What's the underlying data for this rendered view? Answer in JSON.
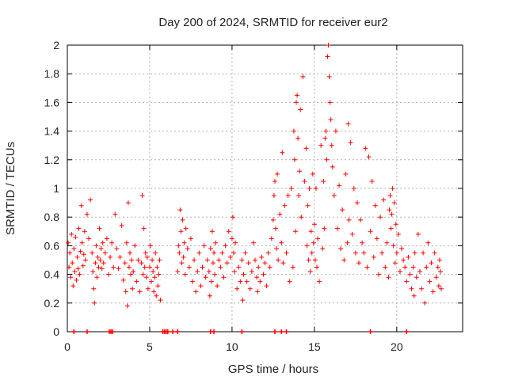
{
  "chart_data": {
    "type": "scatter",
    "title": "Day 200 of 2024, SRMTID for receiver eur2",
    "xlabel": "GPS time / hours",
    "ylabel": "SRMTID / TECUs",
    "xlim": [
      0,
      24
    ],
    "ylim": [
      0,
      2
    ],
    "xticks": [
      0,
      5,
      10,
      15,
      20
    ],
    "xtick_labels": [
      "0",
      "5",
      "10",
      "15",
      "20"
    ],
    "yticks": [
      0,
      0.2,
      0.4,
      0.6,
      0.8,
      1,
      1.2,
      1.4,
      1.6,
      1.8,
      2
    ],
    "ytick_labels": [
      "0",
      "0.2",
      "0.4",
      "0.6",
      "0.8",
      "1",
      "1.2",
      "1.4",
      "1.6",
      "1.8",
      "2"
    ],
    "grid": true,
    "marker": "+",
    "color": "#ff0000",
    "zero_markers_x": [
      0.4,
      1.2,
      2.55,
      2.65,
      2.75,
      5.8,
      5.9,
      6.0,
      6.1,
      6.4,
      6.7,
      8.7,
      8.9,
      10.6,
      12.6,
      13.0,
      13.3,
      18.4,
      20.6
    ],
    "series": [
      {
        "name": "SRMTID",
        "points": [
          [
            0.05,
            0.62
          ],
          [
            0.1,
            0.45
          ],
          [
            0.15,
            0.55
          ],
          [
            0.2,
            0.38
          ],
          [
            0.25,
            0.68
          ],
          [
            0.3,
            0.48
          ],
          [
            0.35,
            0.32
          ],
          [
            0.4,
            0.58
          ],
          [
            0.45,
            0.42
          ],
          [
            0.5,
            0.66
          ],
          [
            0.55,
            0.36
          ],
          [
            0.6,
            0.52
          ],
          [
            0.65,
            0.44
          ],
          [
            0.7,
            0.72
          ],
          [
            0.75,
            0.4
          ],
          [
            0.8,
            0.56
          ],
          [
            0.85,
            0.88
          ],
          [
            0.9,
            0.62
          ],
          [
            0.95,
            0.46
          ],
          [
            1.0,
            0.54
          ],
          [
            1.05,
            0.7
          ],
          [
            1.1,
            0.5
          ],
          [
            1.2,
            0.82
          ],
          [
            1.3,
            0.65
          ],
          [
            1.4,
            0.92
          ],
          [
            1.5,
            0.55
          ],
          [
            1.55,
            0.42
          ],
          [
            1.6,
            0.3
          ],
          [
            1.65,
            0.2
          ],
          [
            1.7,
            0.48
          ],
          [
            1.75,
            0.6
          ],
          [
            1.8,
            0.38
          ],
          [
            1.85,
            0.52
          ],
          [
            1.9,
            0.45
          ],
          [
            1.95,
            0.72
          ],
          [
            2.0,
            0.5
          ],
          [
            2.05,
            0.58
          ],
          [
            2.1,
            0.44
          ],
          [
            2.15,
            0.62
          ],
          [
            2.2,
            0.48
          ],
          [
            2.3,
            0.55
          ],
          [
            2.4,
            0.65
          ],
          [
            2.5,
            0.4
          ],
          [
            2.6,
            0.52
          ],
          [
            2.7,
            0.62
          ],
          [
            2.8,
            0.45
          ],
          [
            2.9,
            0.82
          ],
          [
            3.0,
            0.58
          ],
          [
            3.1,
            0.44
          ],
          [
            3.2,
            0.52
          ],
          [
            3.3,
            0.74
          ],
          [
            3.4,
            0.36
          ],
          [
            3.5,
            0.48
          ],
          [
            3.55,
            0.28
          ],
          [
            3.6,
            0.62
          ],
          [
            3.65,
            0.18
          ],
          [
            3.7,
            0.9
          ],
          [
            3.75,
            0.45
          ],
          [
            3.8,
            0.55
          ],
          [
            3.85,
            0.4
          ],
          [
            3.9,
            0.5
          ],
          [
            3.95,
            0.3
          ],
          [
            4.0,
            0.42
          ],
          [
            4.1,
            0.6
          ],
          [
            4.2,
            0.35
          ],
          [
            4.3,
            0.5
          ],
          [
            4.4,
            0.28
          ],
          [
            4.5,
            0.48
          ],
          [
            4.55,
            0.95
          ],
          [
            4.6,
            0.4
          ],
          [
            4.65,
            0.72
          ],
          [
            4.7,
            0.45
          ],
          [
            4.75,
            0.55
          ],
          [
            4.8,
            0.38
          ],
          [
            4.85,
            0.52
          ],
          [
            4.9,
            0.3
          ],
          [
            5.0,
            0.45
          ],
          [
            5.05,
            0.6
          ],
          [
            5.1,
            0.35
          ],
          [
            5.15,
            0.5
          ],
          [
            5.2,
            0.42
          ],
          [
            5.25,
            0.28
          ],
          [
            5.3,
            0.38
          ],
          [
            5.35,
            0.55
          ],
          [
            5.4,
            0.25
          ],
          [
            5.45,
            0.45
          ],
          [
            5.5,
            0.32
          ],
          [
            5.55,
            0.4
          ],
          [
            5.6,
            0.5
          ],
          [
            5.65,
            0.22
          ],
          [
            6.7,
            0.42
          ],
          [
            6.75,
            0.6
          ],
          [
            6.8,
            0.55
          ],
          [
            6.85,
            0.85
          ],
          [
            6.9,
            0.7
          ],
          [
            6.95,
            0.48
          ],
          [
            7.0,
            0.78
          ],
          [
            7.05,
            0.52
          ],
          [
            7.1,
            0.62
          ],
          [
            7.15,
            0.4
          ],
          [
            7.2,
            0.72
          ],
          [
            7.3,
            0.58
          ],
          [
            7.4,
            0.45
          ],
          [
            7.5,
            0.65
          ],
          [
            7.6,
            0.35
          ],
          [
            7.7,
            0.5
          ],
          [
            7.8,
            0.28
          ],
          [
            7.9,
            0.42
          ],
          [
            8.0,
            0.55
          ],
          [
            8.1,
            0.32
          ],
          [
            8.2,
            0.45
          ],
          [
            8.3,
            0.6
          ],
          [
            8.4,
            0.38
          ],
          [
            8.5,
            0.5
          ],
          [
            8.6,
            0.42
          ],
          [
            8.65,
            0.25
          ],
          [
            8.7,
            0.58
          ],
          [
            8.75,
            0.35
          ],
          [
            8.8,
            0.7
          ],
          [
            8.85,
            0.48
          ],
          [
            8.9,
            0.55
          ],
          [
            8.95,
            0.4
          ],
          [
            9.0,
            0.62
          ],
          [
            9.1,
            0.32
          ],
          [
            9.2,
            0.5
          ],
          [
            9.3,
            0.45
          ],
          [
            9.4,
            0.55
          ],
          [
            9.5,
            0.38
          ],
          [
            9.6,
            0.6
          ],
          [
            9.7,
            0.48
          ],
          [
            9.8,
            0.7
          ],
          [
            9.9,
            0.52
          ],
          [
            10.0,
            0.65
          ],
          [
            10.05,
            0.8
          ],
          [
            10.1,
            0.55
          ],
          [
            10.15,
            0.42
          ],
          [
            10.2,
            0.62
          ],
          [
            10.3,
            0.3
          ],
          [
            10.4,
            0.45
          ],
          [
            10.5,
            0.35
          ],
          [
            10.6,
            0.5
          ],
          [
            10.65,
            0.22
          ],
          [
            10.7,
            0.4
          ],
          [
            10.8,
            0.55
          ],
          [
            10.9,
            0.35
          ],
          [
            11.0,
            0.48
          ],
          [
            11.1,
            0.3
          ],
          [
            11.2,
            0.42
          ],
          [
            11.3,
            0.62
          ],
          [
            11.4,
            0.5
          ],
          [
            11.5,
            0.38
          ],
          [
            11.55,
            0.28
          ],
          [
            11.6,
            0.45
          ],
          [
            11.7,
            0.35
          ],
          [
            11.8,
            0.52
          ],
          [
            11.9,
            0.4
          ],
          [
            12.0,
            0.48
          ],
          [
            12.1,
            0.32
          ],
          [
            12.2,
            0.55
          ],
          [
            12.3,
            0.45
          ],
          [
            12.4,
            0.65
          ],
          [
            12.5,
            0.78
          ],
          [
            12.55,
            0.95
          ],
          [
            12.6,
            1.05
          ],
          [
            12.65,
            0.72
          ],
          [
            12.7,
            0.58
          ],
          [
            12.75,
            1.1
          ],
          [
            12.8,
            0.5
          ],
          [
            12.9,
            0.82
          ],
          [
            13.0,
            0.62
          ],
          [
            13.05,
            1.25
          ],
          [
            13.1,
            0.48
          ],
          [
            13.2,
            0.88
          ],
          [
            13.3,
            0.55
          ],
          [
            13.4,
            0.95
          ],
          [
            13.5,
            0.35
          ],
          [
            13.6,
            1.0
          ],
          [
            13.7,
            0.45
          ],
          [
            13.75,
            1.4
          ],
          [
            13.8,
            1.2
          ],
          [
            13.85,
            0.7
          ],
          [
            13.9,
            1.6
          ],
          [
            13.95,
            1.65
          ],
          [
            14.0,
            1.35
          ],
          [
            14.05,
            0.95
          ],
          [
            14.1,
            1.12
          ],
          [
            14.15,
            1.55
          ],
          [
            14.2,
            0.8
          ],
          [
            14.3,
            1.78
          ],
          [
            14.4,
            1.05
          ],
          [
            14.5,
            1.28
          ],
          [
            14.55,
            0.6
          ],
          [
            14.6,
            0.88
          ],
          [
            14.65,
            0.5
          ],
          [
            14.7,
            1.0
          ],
          [
            14.75,
            0.42
          ],
          [
            14.8,
            0.7
          ],
          [
            14.85,
            0.55
          ],
          [
            14.9,
            1.1
          ],
          [
            14.95,
            0.62
          ],
          [
            15.0,
            0.75
          ],
          [
            15.05,
            0.5
          ],
          [
            15.1,
            1.0
          ],
          [
            15.15,
            0.45
          ],
          [
            15.2,
            0.65
          ],
          [
            15.3,
            0.35
          ],
          [
            15.4,
            1.3
          ],
          [
            15.5,
            0.58
          ],
          [
            15.55,
            1.05
          ],
          [
            15.6,
            0.72
          ],
          [
            15.65,
            1.35
          ],
          [
            15.7,
            1.4
          ],
          [
            15.75,
            1.2
          ],
          [
            15.8,
            1.92
          ],
          [
            15.85,
            2.0
          ],
          [
            15.9,
            1.78
          ],
          [
            15.95,
            1.6
          ],
          [
            16.0,
            1.48
          ],
          [
            16.05,
            1.3
          ],
          [
            16.1,
            1.15
          ],
          [
            16.2,
            0.95
          ],
          [
            16.3,
            1.4
          ],
          [
            16.4,
            0.72
          ],
          [
            16.5,
            1.02
          ],
          [
            16.6,
            0.58
          ],
          [
            16.7,
            0.85
          ],
          [
            16.8,
            0.5
          ],
          [
            16.9,
            1.1
          ],
          [
            17.0,
            0.62
          ],
          [
            17.05,
            1.45
          ],
          [
            17.1,
            0.78
          ],
          [
            17.2,
            1.32
          ],
          [
            17.3,
            0.68
          ],
          [
            17.4,
            1.0
          ],
          [
            17.5,
            0.55
          ],
          [
            17.6,
            0.9
          ],
          [
            17.7,
            0.48
          ],
          [
            17.8,
            0.78
          ],
          [
            17.9,
            0.62
          ],
          [
            18.0,
            0.55
          ],
          [
            18.1,
            1.28
          ],
          [
            18.2,
            0.45
          ],
          [
            18.3,
            1.22
          ],
          [
            18.4,
            0.7
          ],
          [
            18.5,
            1.05
          ],
          [
            18.6,
            0.52
          ],
          [
            18.7,
            0.88
          ],
          [
            18.8,
            0.65
          ],
          [
            18.9,
            0.4
          ],
          [
            19.0,
            0.8
          ],
          [
            19.1,
            0.55
          ],
          [
            19.2,
            0.92
          ],
          [
            19.3,
            0.45
          ],
          [
            19.4,
            0.62
          ],
          [
            19.5,
            0.38
          ],
          [
            19.55,
            0.85
          ],
          [
            19.6,
            0.95
          ],
          [
            19.65,
            0.72
          ],
          [
            19.7,
            0.82
          ],
          [
            19.75,
            1.0
          ],
          [
            19.8,
            0.6
          ],
          [
            19.85,
            0.9
          ],
          [
            19.9,
            0.48
          ],
          [
            19.95,
            0.75
          ],
          [
            20.0,
            0.55
          ],
          [
            20.1,
            0.68
          ],
          [
            20.2,
            0.42
          ],
          [
            20.3,
            0.58
          ],
          [
            20.4,
            0.5
          ],
          [
            20.5,
            0.45
          ],
          [
            20.6,
            0.35
          ],
          [
            20.7,
            0.52
          ],
          [
            20.8,
            0.4
          ],
          [
            20.9,
            0.3
          ],
          [
            21.0,
            0.45
          ],
          [
            21.05,
            0.25
          ],
          [
            21.1,
            0.55
          ],
          [
            21.2,
            0.38
          ],
          [
            21.3,
            0.68
          ],
          [
            21.4,
            0.42
          ],
          [
            21.5,
            0.3
          ],
          [
            21.6,
            0.55
          ],
          [
            21.7,
            0.2
          ],
          [
            21.8,
            0.45
          ],
          [
            21.9,
            0.62
          ],
          [
            22.0,
            0.35
          ],
          [
            22.1,
            0.48
          ],
          [
            22.2,
            0.28
          ],
          [
            22.3,
            0.55
          ],
          [
            22.4,
            0.38
          ],
          [
            22.5,
            0.45
          ],
          [
            22.55,
            0.32
          ],
          [
            22.6,
            0.5
          ],
          [
            22.65,
            0.42
          ],
          [
            22.7,
            0.3
          ]
        ]
      }
    ]
  }
}
